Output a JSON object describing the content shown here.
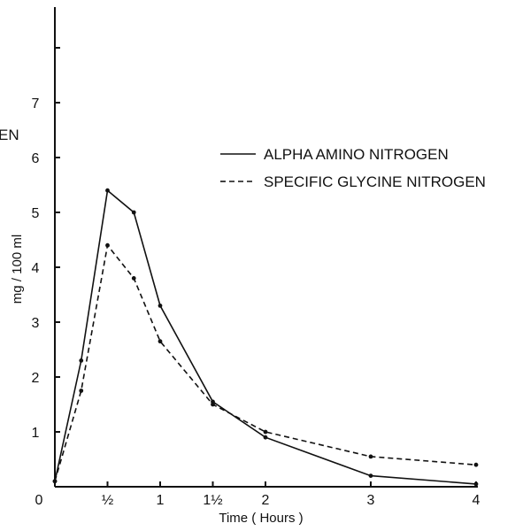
{
  "chart_data": {
    "type": "line",
    "title": "",
    "clipped_left_label": "EN",
    "xlabel": "Time ( Hours )",
    "ylabel": "mg / 100 ml",
    "xlim": [
      0,
      4
    ],
    "ylim": [
      0,
      9
    ],
    "x_ticks": [
      {
        "value": 0,
        "label": "0"
      },
      {
        "value": 0.5,
        "label": "½"
      },
      {
        "value": 1,
        "label": "1"
      },
      {
        "value": 1.5,
        "label": "1½"
      },
      {
        "value": 2,
        "label": "2"
      },
      {
        "value": 3,
        "label": "3"
      },
      {
        "value": 4,
        "label": "4"
      }
    ],
    "y_ticks": [
      {
        "value": 1,
        "label": "1"
      },
      {
        "value": 2,
        "label": "2"
      },
      {
        "value": 3,
        "label": "3"
      },
      {
        "value": 4,
        "label": "4"
      },
      {
        "value": 5,
        "label": "5"
      },
      {
        "value": 6,
        "label": "6"
      },
      {
        "value": 7,
        "label": "7"
      },
      {
        "value": 8,
        "label": ""
      }
    ],
    "grid": false,
    "legend_position": "top-right",
    "series": [
      {
        "name": "ALPHA AMINO NITROGEN",
        "style": "solid",
        "color": "#111111",
        "x": [
          0,
          0.25,
          0.5,
          0.75,
          1,
          1.5,
          2,
          3,
          4
        ],
        "y": [
          0.1,
          2.3,
          5.4,
          5.0,
          3.3,
          1.55,
          0.9,
          0.2,
          0.05
        ]
      },
      {
        "name": "SPECIFIC GLYCINE NITROGEN",
        "style": "dashed",
        "color": "#111111",
        "x": [
          0,
          0.25,
          0.5,
          0.75,
          1,
          1.5,
          2,
          3,
          4
        ],
        "y": [
          0.1,
          1.75,
          4.4,
          3.8,
          2.65,
          1.5,
          1.0,
          0.55,
          0.4
        ]
      }
    ]
  }
}
